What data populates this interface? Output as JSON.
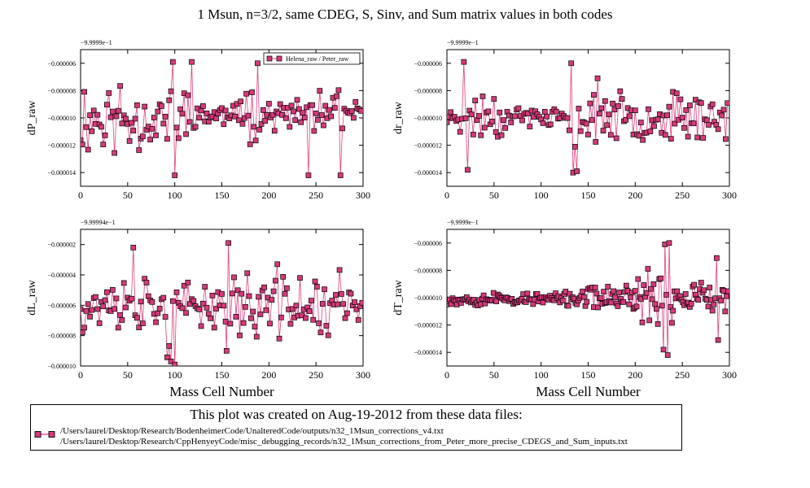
{
  "figure": {
    "title": "1 Msun, n=3/2, same CDEG, S, Sinv, and Sum matrix values in both codes",
    "info_heading": "This plot was created on Aug-19-2012 from these data files:",
    "files": [
      "/Users/laurel/Desktop/Research/BodenheimerCode/UnalteredCode/outputs/n32_1Msun_corrections_v4.txt",
      "/Users/laurel/Desktop/Research/CppHenyeyCode/misc_debugging_records/n32_1Msun_corrections_from_Peter_more_precise_CDEGS_and_Sum_inputs.txt"
    ]
  },
  "colors": {
    "line": "#e0407f",
    "marker_fill": "#d63a7a",
    "marker_edge": "#000000"
  },
  "chart_data": [
    {
      "type": "line",
      "xlabel": "",
      "ylabel": "dP_raw",
      "offset_label": "−9.9999e−1",
      "xlim": [
        0,
        300
      ],
      "ylim": [
        -1.5e-05,
        -5e-06
      ],
      "xticks": [
        0,
        50,
        100,
        150,
        200,
        250,
        300
      ],
      "xtick_labels": [
        "0",
        "50",
        "100",
        "150",
        "200",
        "250",
        "300"
      ],
      "yticks": [
        -1.4e-05,
        -1.2e-05,
        -1e-05,
        -8e-06,
        -6e-06
      ],
      "ytick_labels": [
        "−0.000014",
        "−0.000012",
        "−0.000010",
        "−0.000008",
        "−0.000006"
      ],
      "legend": {
        "label": "Helena_raw / Peter_raw",
        "position": "top-right"
      },
      "seed": 11,
      "x_step": 2,
      "segments": [
        {
          "x": [
            0,
            118
          ],
          "base": -1e-05,
          "spread": 3.4e-06
        },
        {
          "x": [
            118,
            170
          ],
          "base": -9.8e-06,
          "spread": 1e-06
        },
        {
          "x": [
            170,
            192
          ],
          "base": -9.5e-06,
          "spread": 2.6e-06
        },
        {
          "x": [
            192,
            240
          ],
          "base": -9.8e-06,
          "spread": 1.2e-06
        },
        {
          "x": [
            240,
            280
          ],
          "base": -9.8e-06,
          "spread": 2.8e-06
        },
        {
          "x": [
            280,
            300
          ],
          "base": -9.7e-06,
          "spread": 1e-06
        }
      ],
      "spikes": [
        {
          "x": 98,
          "y": -5.9e-06
        },
        {
          "x": 118,
          "y": -5.9e-06
        },
        {
          "x": 188,
          "y": -6e-06
        },
        {
          "x": 242,
          "y": -1.42e-05
        },
        {
          "x": 276,
          "y": -1.42e-05
        },
        {
          "x": 100,
          "y": -1.42e-05
        }
      ]
    },
    {
      "type": "line",
      "xlabel": "",
      "ylabel": "dr_raw",
      "offset_label": "−9.9999e−1",
      "xlim": [
        0,
        300
      ],
      "ylim": [
        -1.5e-05,
        -5e-06
      ],
      "xticks": [
        0,
        50,
        100,
        150,
        200,
        250,
        300
      ],
      "xtick_labels": [
        "0",
        "50",
        "100",
        "150",
        "200",
        "250",
        "300"
      ],
      "yticks": [
        -1.4e-05,
        -1.2e-05,
        -1e-05,
        -8e-06,
        -6e-06
      ],
      "ytick_labels": [
        "−0.000014",
        "−0.000012",
        "−0.000010",
        "−0.000008",
        "−0.000006"
      ],
      "seed": 23,
      "x_step": 2,
      "segments": [
        {
          "x": [
            0,
            14
          ],
          "base": -1e-05,
          "spread": 8e-07
        },
        {
          "x": [
            14,
            60
          ],
          "base": -9.8e-06,
          "spread": 2.4e-06
        },
        {
          "x": [
            60,
            128
          ],
          "base": -9.9e-06,
          "spread": 1e-06
        },
        {
          "x": [
            128,
            140
          ],
          "base": -1.2e-05,
          "spread": 2.8e-06
        },
        {
          "x": [
            140,
            300
          ],
          "base": -9.9e-06,
          "spread": 2e-06
        }
      ],
      "spikes": [
        {
          "x": 18,
          "y": -5.9e-06
        },
        {
          "x": 22,
          "y": -1.38e-05
        },
        {
          "x": 132,
          "y": -6e-06
        },
        {
          "x": 134,
          "y": -1.4e-05
        },
        {
          "x": 138,
          "y": -1.39e-05
        },
        {
          "x": 160,
          "y": -7.1e-06
        }
      ]
    },
    {
      "type": "line",
      "xlabel": "Mass Cell Number",
      "ylabel": "dL_raw",
      "offset_label": "−9.99994e−1",
      "xlim": [
        0,
        300
      ],
      "ylim": [
        -1e-05,
        -1e-06
      ],
      "xticks": [
        0,
        50,
        100,
        150,
        200,
        250,
        300
      ],
      "xtick_labels": [
        "0",
        "50",
        "100",
        "150",
        "200",
        "250",
        "300"
      ],
      "yticks": [
        -1e-05,
        -8e-06,
        -6e-06,
        -4e-06,
        -2e-06
      ],
      "ytick_labels": [
        "−0.000010",
        "−0.000008",
        "−0.000006",
        "−0.000004",
        "−0.000002"
      ],
      "seed": 37,
      "x_step": 2,
      "segments": [
        {
          "x": [
            0,
            90
          ],
          "base": -6e-06,
          "spread": 2.2e-06
        },
        {
          "x": [
            90,
            102
          ],
          "base": -7e-06,
          "spread": 2.8e-06
        },
        {
          "x": [
            102,
            155
          ],
          "base": -6e-06,
          "spread": 1.6e-06
        },
        {
          "x": [
            155,
            300
          ],
          "base": -6e-06,
          "spread": 3e-06
        }
      ],
      "spikes": [
        {
          "x": 56,
          "y": -2.2e-06
        },
        {
          "x": 158,
          "y": -1.9e-06
        },
        {
          "x": 96,
          "y": -9.7e-06
        },
        {
          "x": 100,
          "y": -9.9e-06
        },
        {
          "x": 156,
          "y": -9e-06
        }
      ]
    },
    {
      "type": "line",
      "xlabel": "Mass Cell Number",
      "ylabel": "dT_raw",
      "offset_label": "−9.9999e−1",
      "xlim": [
        0,
        300
      ],
      "ylim": [
        -1.5e-05,
        -5e-06
      ],
      "xticks": [
        0,
        50,
        100,
        150,
        200,
        250,
        300
      ],
      "xtick_labels": [
        "0",
        "50",
        "100",
        "150",
        "200",
        "250",
        "300"
      ],
      "yticks": [
        -1.4e-05,
        -1.2e-05,
        -1e-05,
        -8e-06,
        -6e-06
      ],
      "ytick_labels": [
        "−0.000014",
        "−0.000012",
        "−0.000010",
        "−0.000008",
        "−0.000006"
      ],
      "seed": 53,
      "x_step": 1.5,
      "segments": [
        {
          "x": [
            0,
            150
          ],
          "base": -1.01e-05,
          "spread": 6e-07
        },
        {
          "x": [
            150,
            200
          ],
          "base": -1e-05,
          "spread": 1.2e-06
        },
        {
          "x": [
            200,
            240
          ],
          "base": -1e-05,
          "spread": 2.6e-06
        },
        {
          "x": [
            240,
            300
          ],
          "base": -1e-05,
          "spread": 1.6e-06
        }
      ],
      "spikes": [
        {
          "x": 232,
          "y": -6.1e-06
        },
        {
          "x": 236,
          "y": -6e-06
        },
        {
          "x": 234,
          "y": -1.42e-05
        },
        {
          "x": 230,
          "y": -1.38e-05
        },
        {
          "x": 288,
          "y": -1.31e-05
        },
        {
          "x": 286,
          "y": -7.1e-06
        }
      ]
    }
  ]
}
